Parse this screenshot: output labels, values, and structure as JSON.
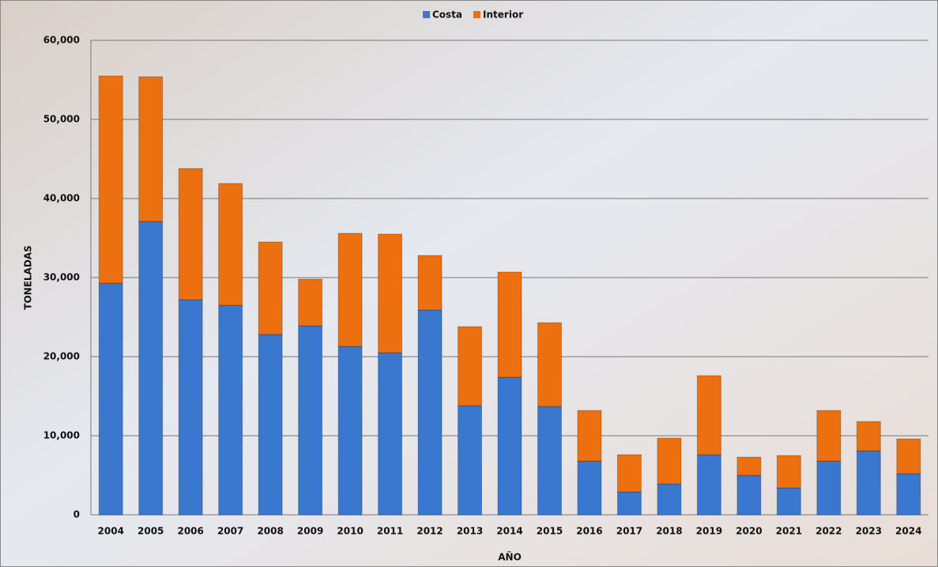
{
  "chart_data": {
    "type": "bar",
    "stacked": true,
    "x_label": "AÑO",
    "y_label": "TONELADAS",
    "categories": [
      "2004",
      "2005",
      "2006",
      "2007",
      "2008",
      "2009",
      "2010",
      "2011",
      "2012",
      "2013",
      "2014",
      "2015",
      "2016",
      "2017",
      "2018",
      "2019",
      "2020",
      "2021",
      "2022",
      "2023",
      "2024"
    ],
    "series": [
      {
        "name": "Costa",
        "color": "#3a78d0",
        "values": [
          29300,
          37100,
          27200,
          26500,
          22800,
          23900,
          21300,
          20500,
          25900,
          13800,
          17400,
          13700,
          6800,
          2900,
          3900,
          7600,
          5000,
          3400,
          6800,
          8100,
          5200
        ]
      },
      {
        "name": "Interior",
        "color": "#ec700f",
        "values": [
          26200,
          18300,
          16600,
          15400,
          11700,
          5900,
          14300,
          15000,
          6900,
          10000,
          13300,
          10600,
          6400,
          4700,
          5800,
          10000,
          2300,
          4100,
          6400,
          3700,
          4400
        ]
      }
    ],
    "ylim": [
      0,
      60000
    ],
    "yticks": [
      0,
      {
        "value": 10000,
        "label": "10,000"
      },
      {
        "value": 20000,
        "label": "20,000"
      },
      {
        "value": 30000,
        "label": "30,000"
      },
      {
        "value": 40000,
        "label": "40,000"
      },
      {
        "value": 50000,
        "label": "50,000"
      },
      {
        "value": 60000,
        "label": "60,000"
      }
    ],
    "grid": true,
    "legend": "top"
  }
}
